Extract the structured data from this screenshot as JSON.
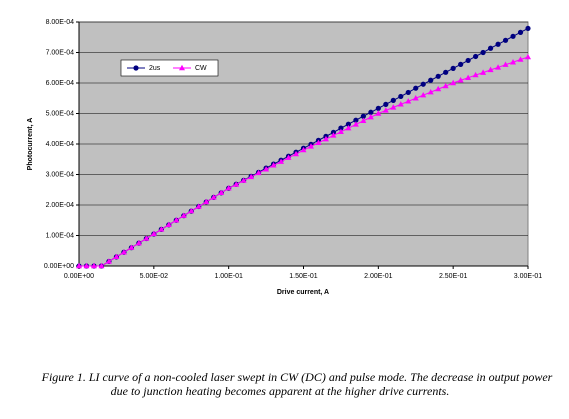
{
  "chart_data": {
    "type": "line",
    "xlabel": "Drive current, A",
    "ylabel": "Photocurrent, A",
    "caption": [
      "Figure 1. LI curve of a non-cooled laser swept in CW (DC) and pulse mode. The decrease in output power",
      "due to junction heating becomes apparent at the higher drive currents."
    ],
    "x": [
      0,
      0.005,
      0.01,
      0.015,
      0.02,
      0.025,
      0.03,
      0.035,
      0.04,
      0.045,
      0.05,
      0.055,
      0.06,
      0.065,
      0.07,
      0.075,
      0.08,
      0.085,
      0.09,
      0.095,
      0.1,
      0.105,
      0.11,
      0.115,
      0.12,
      0.125,
      0.13,
      0.135,
      0.14,
      0.145,
      0.15,
      0.155,
      0.16,
      0.165,
      0.17,
      0.175,
      0.18,
      0.185,
      0.19,
      0.195,
      0.2,
      0.205,
      0.21,
      0.215,
      0.22,
      0.225,
      0.23,
      0.235,
      0.24,
      0.245,
      0.25,
      0.255,
      0.26,
      0.265,
      0.27,
      0.275,
      0.28,
      0.285,
      0.29,
      0.295,
      0.3
    ],
    "series": [
      {
        "name": "2us",
        "color": "#000080",
        "marker": "circle",
        "values": [
          0,
          0,
          0,
          0,
          1.5e-05,
          3e-05,
          4.5e-05,
          6e-05,
          7.5e-05,
          9e-05,
          0.000105,
          0.00012,
          0.000135,
          0.00015,
          0.000165,
          0.00018,
          0.000195,
          0.00021,
          0.000225,
          0.00024,
          0.000255,
          0.000268,
          0.000281,
          0.000294,
          0.000307,
          0.000321,
          0.000334,
          0.000347,
          0.00036,
          0.000373,
          0.000386,
          0.000399,
          0.000412,
          0.000425,
          0.000438,
          0.000452,
          0.000465,
          0.000478,
          0.000491,
          0.000504,
          0.000517,
          0.00053,
          0.000543,
          0.000556,
          0.000569,
          0.000583,
          0.000596,
          0.000609,
          0.000622,
          0.000635,
          0.000648,
          0.000661,
          0.000674,
          0.000687,
          0.0007,
          0.000714,
          0.000727,
          0.00074,
          0.000753,
          0.000766,
          0.000779
        ]
      },
      {
        "name": "CW",
        "color": "#ff00ff",
        "marker": "triangle",
        "values": [
          0,
          0,
          0,
          0,
          1.5e-05,
          3e-05,
          4.5e-05,
          6e-05,
          7.5e-05,
          9e-05,
          0.000105,
          0.00012,
          0.000135,
          0.00015,
          0.000165,
          0.00018,
          0.000195,
          0.00021,
          0.000225,
          0.00024,
          0.000255,
          0.000267,
          0.00028,
          0.000292,
          0.000305,
          0.000317,
          0.00033,
          0.000342,
          0.000355,
          0.000367,
          0.00038,
          0.000392,
          0.000404,
          0.000416,
          0.000428,
          0.00044,
          0.000452,
          0.000464,
          0.000476,
          0.000488,
          0.0005,
          0.00051,
          0.00052,
          0.00053,
          0.00054,
          0.00055,
          0.00056,
          0.00057,
          0.00058,
          0.00059,
          0.0006,
          0.000609,
          0.000617,
          0.000626,
          0.000634,
          0.000643,
          0.000651,
          0.00066,
          0.000668,
          0.000677,
          0.000685
        ]
      }
    ],
    "xlim": [
      0,
      0.3
    ],
    "xticks": [
      {
        "value": 0,
        "label": "0.00E+00"
      },
      {
        "value": 0.05,
        "label": "5.00E-02"
      },
      {
        "value": 0.1,
        "label": "1.00E-01"
      },
      {
        "value": 0.15,
        "label": "1.50E-01"
      },
      {
        "value": 0.2,
        "label": "2.00E-01"
      },
      {
        "value": 0.25,
        "label": "2.50E-01"
      },
      {
        "value": 0.3,
        "label": "3.00E-01"
      }
    ],
    "ylim": [
      0,
      0.0008
    ],
    "yticks": [
      {
        "value": 0,
        "label": "0.00E+00"
      },
      {
        "value": 0.0001,
        "label": "1.00E-04"
      },
      {
        "value": 0.0002,
        "label": "2.00E-04"
      },
      {
        "value": 0.0003,
        "label": "3.00E-04"
      },
      {
        "value": 0.0004,
        "label": "4.00E-04"
      },
      {
        "value": 0.0005,
        "label": "5.00E-04"
      },
      {
        "value": 0.0006,
        "label": "6.00E-04"
      },
      {
        "value": 0.0007,
        "label": "7.00E-04"
      },
      {
        "value": 0.0008,
        "label": "8.00E-04"
      }
    ],
    "grid": true,
    "plot_background": "#c0c0c0"
  }
}
